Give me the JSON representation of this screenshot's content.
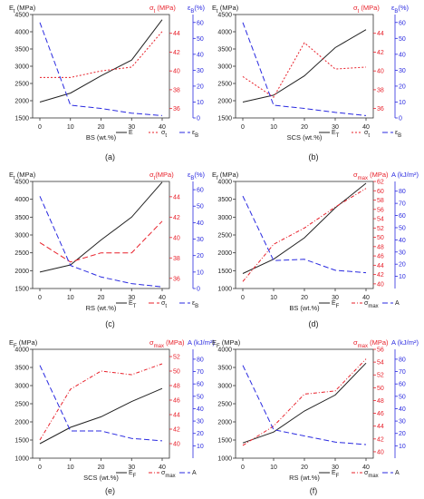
{
  "colors": {
    "black": "#222222",
    "red": "#e8202a",
    "blue": "#2a2ae0"
  },
  "chart_data": [
    {
      "panel": "(a)",
      "type": "line",
      "xlabel": "BS (wt.%)",
      "x": [
        0,
        10,
        20,
        30,
        40
      ],
      "left": {
        "label": "E",
        "sub": "t",
        "unit": " (MPa)",
        "lim": [
          1500,
          4500
        ],
        "ticks": [
          1500,
          2000,
          2500,
          3000,
          3500,
          4000,
          4500
        ]
      },
      "right1": {
        "label": "σ",
        "sub": "t",
        "unit": " (MPa)",
        "lim": [
          35,
          46
        ],
        "ticks": [
          36,
          38,
          40,
          42,
          44
        ]
      },
      "right2": {
        "label": "ε",
        "sub": "B",
        "unit": "(%)",
        "lim": [
          0,
          65
        ],
        "ticks": [
          0,
          10,
          20,
          30,
          40,
          50,
          60
        ]
      },
      "series": [
        {
          "name": "E",
          "axis": "left",
          "color": "black",
          "dash": "",
          "values": [
            1960,
            2220,
            2720,
            3180,
            4350
          ]
        },
        {
          "name": "σ",
          "sub": "t",
          "axis": "right1",
          "color": "red",
          "dash": "2,2",
          "values": [
            39.3,
            39.3,
            40.0,
            40.4,
            44.2
          ]
        },
        {
          "name": "ε",
          "sub": "B",
          "axis": "right2",
          "color": "blue",
          "dash": "6,3",
          "values": [
            60,
            8,
            6,
            3,
            1.5
          ]
        }
      ]
    },
    {
      "panel": "(b)",
      "type": "line",
      "xlabel": "SCS (wt.%)",
      "x": [
        0,
        10,
        20,
        30,
        40
      ],
      "left": {
        "label": "E",
        "sub": "t",
        "unit": " (MPa)",
        "lim": [
          1500,
          4500
        ],
        "ticks": [
          1500,
          2000,
          2500,
          3000,
          3500,
          4000,
          4500
        ]
      },
      "right1": {
        "label": "σ",
        "sub": "t",
        "unit": " (MPa)",
        "lim": [
          35,
          46
        ],
        "ticks": [
          36,
          38,
          40,
          42,
          44
        ]
      },
      "right2": {
        "label": "ε",
        "sub": "B",
        "unit": "(%)",
        "lim": [
          0,
          65
        ],
        "ticks": [
          0,
          10,
          20,
          30,
          40,
          50,
          60
        ]
      },
      "series": [
        {
          "name": "E",
          "sub": "T",
          "axis": "left",
          "color": "black",
          "dash": "",
          "values": [
            1960,
            2160,
            2720,
            3540,
            4060
          ]
        },
        {
          "name": "σ",
          "sub": "t",
          "axis": "right1",
          "color": "red",
          "dash": "2,2",
          "values": [
            39.4,
            37.2,
            43.0,
            40.2,
            40.4
          ]
        },
        {
          "name": "ε",
          "sub": "B",
          "axis": "right2",
          "color": "blue",
          "dash": "6,3",
          "values": [
            60,
            8,
            6,
            3.5,
            1.5
          ]
        }
      ]
    },
    {
      "panel": "(c)",
      "type": "line",
      "xlabel": "RS (wt.%)",
      "x": [
        0,
        10,
        20,
        30,
        40
      ],
      "left": {
        "label": "E",
        "sub": "t",
        "unit": " (MPa)",
        "lim": [
          1500,
          4500
        ],
        "ticks": [
          1500,
          2000,
          2500,
          3000,
          3500,
          4000,
          4500
        ]
      },
      "right1": {
        "label": "σ",
        "sub": "t",
        "unit": "(MPa)",
        "lim": [
          35,
          45.5
        ],
        "ticks": [
          36,
          38,
          40,
          42,
          44
        ]
      },
      "right2": {
        "label": "ε",
        "sub": "B",
        "unit": "(%)",
        "lim": [
          0,
          65
        ],
        "ticks": [
          0,
          10,
          20,
          30,
          40,
          50,
          60
        ]
      },
      "series": [
        {
          "name": "E",
          "sub": "T",
          "axis": "left",
          "color": "black",
          "dash": "",
          "values": [
            1960,
            2160,
            2860,
            3500,
            4480
          ]
        },
        {
          "name": "σ",
          "sub": "t",
          "axis": "right1",
          "color": "red",
          "dash": "6,3",
          "values": [
            39.5,
            37.6,
            38.5,
            38.5,
            41.6
          ]
        },
        {
          "name": "ε",
          "sub": "B",
          "axis": "right2",
          "color": "blue",
          "dash": "6,3",
          "values": [
            56,
            14,
            7,
            3,
            1
          ]
        }
      ]
    },
    {
      "panel": "(d)",
      "type": "line",
      "xlabel": "BS (wt.%)",
      "x": [
        0,
        10,
        20,
        30,
        40
      ],
      "left": {
        "label": "E",
        "sub": "f",
        "unit": " (MPa)",
        "lim": [
          1000,
          4000
        ],
        "ticks": [
          1000,
          1500,
          2000,
          2500,
          3000,
          3500,
          4000
        ]
      },
      "right1": {
        "label": "σ",
        "sub": "max",
        "unit": " (MPa)",
        "lim": [
          39,
          62
        ],
        "ticks": [
          40,
          42,
          44,
          46,
          48,
          50,
          52,
          54,
          56,
          58,
          60,
          62
        ]
      },
      "right2": {
        "label": "A",
        "sub": "",
        "unit": " (kJ/m²)",
        "lim": [
          0,
          88
        ],
        "ticks": [
          10,
          20,
          30,
          40,
          50,
          60,
          70,
          80
        ]
      },
      "series": [
        {
          "name": "E",
          "sub": "F",
          "axis": "left",
          "color": "black",
          "dash": "",
          "values": [
            1420,
            1820,
            2420,
            3260,
            3950
          ]
        },
        {
          "name": "σ",
          "sub": "max",
          "axis": "right1",
          "color": "red",
          "dash": "4,2,1,2",
          "values": [
            40.5,
            48.5,
            52.0,
            56.5,
            60.5
          ]
        },
        {
          "name": "A",
          "sub": "",
          "axis": "right2",
          "color": "blue",
          "dash": "6,3",
          "values": [
            76,
            23,
            24,
            15,
            13
          ]
        }
      ]
    },
    {
      "panel": "(e)",
      "type": "line",
      "xlabel": "SCS (wt.%)",
      "x": [
        0,
        10,
        20,
        30,
        40
      ],
      "left": {
        "label": "E",
        "sub": "F",
        "unit": " (MPa)",
        "lim": [
          1000,
          4000
        ],
        "ticks": [
          1000,
          1500,
          2000,
          2500,
          3000,
          3500,
          4000
        ]
      },
      "right1": {
        "label": "σ",
        "sub": "max",
        "unit": " (MPa)",
        "lim": [
          38,
          53
        ],
        "ticks": [
          40,
          42,
          44,
          46,
          48,
          50,
          52
        ]
      },
      "right2": {
        "label": "A",
        "sub": "",
        "unit": " (kJ/m²)",
        "lim": [
          0,
          88
        ],
        "ticks": [
          10,
          20,
          30,
          40,
          50,
          60,
          70,
          80
        ]
      },
      "series": [
        {
          "name": "E",
          "sub": "F",
          "axis": "left",
          "color": "black",
          "dash": "",
          "values": [
            1400,
            1850,
            2140,
            2560,
            2920
          ]
        },
        {
          "name": "σ",
          "sub": "max",
          "axis": "right1",
          "color": "red",
          "dash": "4,2,1,2",
          "values": [
            40.5,
            47.5,
            50.0,
            49.5,
            51.0
          ]
        },
        {
          "name": "A",
          "sub": "",
          "axis": "right2",
          "color": "blue",
          "dash": "6,3",
          "values": [
            75,
            22,
            22,
            16,
            14
          ]
        }
      ]
    },
    {
      "panel": "(f)",
      "type": "line",
      "xlabel": "RS (wt.%)",
      "x": [
        0,
        10,
        20,
        30,
        40
      ],
      "left": {
        "label": "E",
        "sub": "F",
        "unit": " (MPa)",
        "lim": [
          1000,
          4000
        ],
        "ticks": [
          1000,
          1500,
          2000,
          2500,
          3000,
          3500,
          4000
        ]
      },
      "right1": {
        "label": "σ",
        "sub": "max",
        "unit": " (MPa)",
        "lim": [
          39,
          56
        ],
        "ticks": [
          40,
          42,
          44,
          46,
          48,
          50,
          52,
          54,
          56
        ]
      },
      "right2": {
        "label": "A",
        "sub": "",
        "unit": " (kJ/m²)",
        "lim": [
          0,
          88
        ],
        "ticks": [
          10,
          20,
          30,
          40,
          50,
          60,
          70,
          80
        ]
      },
      "series": [
        {
          "name": "E",
          "sub": "F",
          "axis": "left",
          "color": "black",
          "dash": "",
          "values": [
            1420,
            1720,
            2300,
            2740,
            3620
          ]
        },
        {
          "name": "σ",
          "sub": "max",
          "axis": "right1",
          "color": "red",
          "dash": "4,2,1,2",
          "values": [
            41.0,
            44.0,
            49.0,
            49.5,
            54.5
          ]
        },
        {
          "name": "A",
          "sub": "",
          "axis": "right2",
          "color": "blue",
          "dash": "6,3",
          "values": [
            75,
            23,
            18,
            13,
            11
          ]
        }
      ]
    }
  ]
}
